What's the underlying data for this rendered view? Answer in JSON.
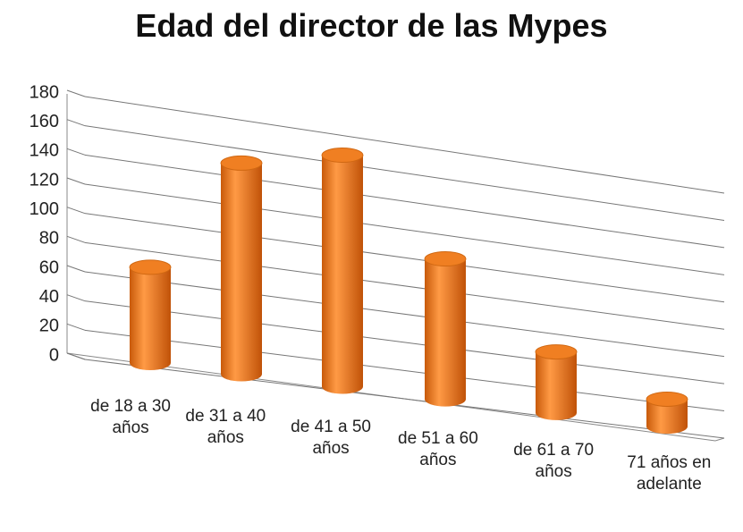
{
  "chart_data": {
    "type": "bar",
    "title": "Edad del director de las Mypes",
    "categories": [
      "de 18 a 30 años",
      "de 31 a 40 años",
      "de 41 a 50 años",
      "de 51 a 60 años",
      "de 61 a 70 años",
      "71 años en adelante"
    ],
    "values": [
      66,
      147,
      163,
      100,
      44,
      20
    ],
    "color": "#f07f22",
    "ylim": [
      0,
      180
    ],
    "yticks": [
      0,
      20,
      40,
      60,
      80,
      100,
      120,
      140,
      160,
      180
    ],
    "grid": true
  }
}
